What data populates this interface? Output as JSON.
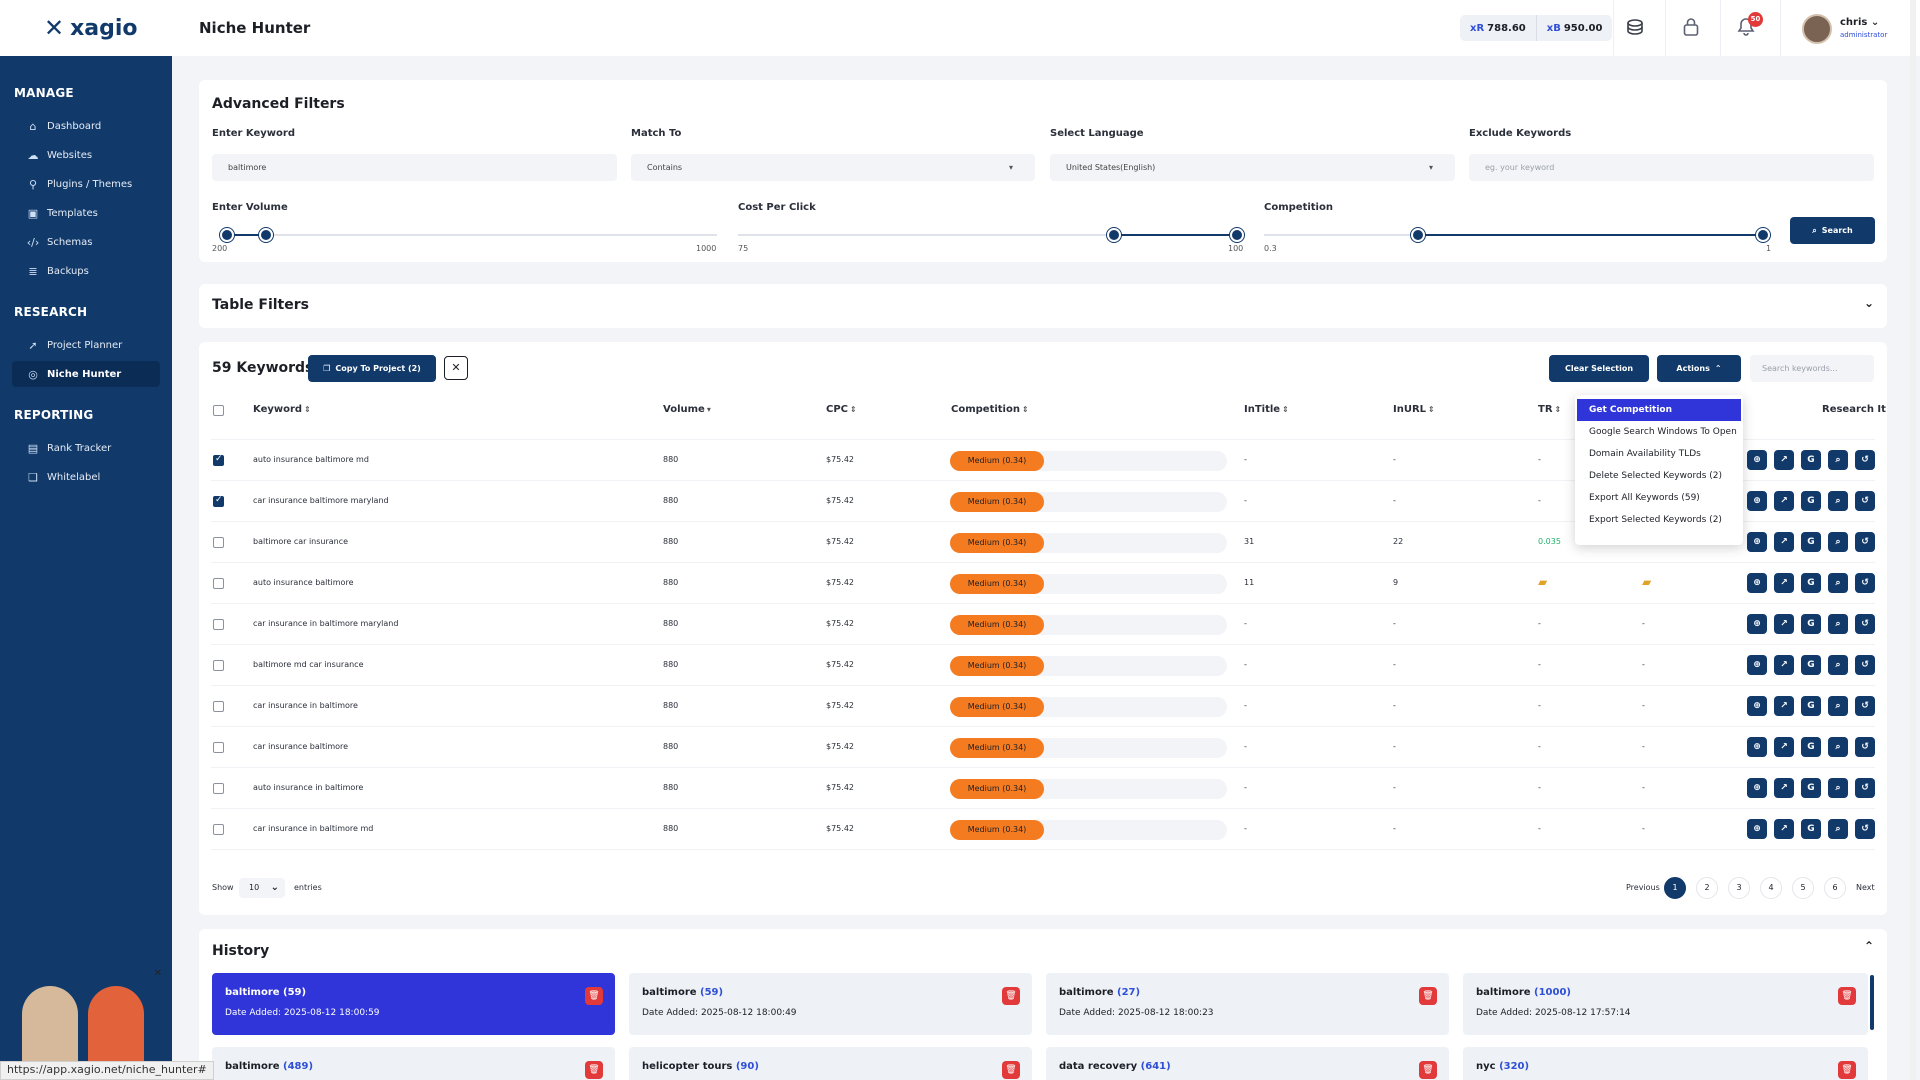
{
  "app": {
    "logo_text": "xagio",
    "page_title": "Niche Hunter"
  },
  "sidebar": {
    "sections": [
      {
        "title": "MANAGE",
        "items": [
          {
            "label": "Dashboard",
            "icon": "home-icon"
          },
          {
            "label": "Websites",
            "icon": "cloud-icon"
          },
          {
            "label": "Plugins / Themes",
            "icon": "plug-icon"
          },
          {
            "label": "Templates",
            "icon": "image-icon"
          },
          {
            "label": "Schemas",
            "icon": "code-icon"
          },
          {
            "label": "Backups",
            "icon": "database-icon"
          }
        ]
      },
      {
        "title": "RESEARCH",
        "items": [
          {
            "label": "Project Planner",
            "icon": "rocket-icon"
          },
          {
            "label": "Niche Hunter",
            "icon": "target-icon"
          }
        ]
      },
      {
        "title": "REPORTING",
        "items": [
          {
            "label": "Rank Tracker",
            "icon": "chart-icon"
          },
          {
            "label": "Whitelabel",
            "icon": "bookmark-icon"
          }
        ]
      }
    ]
  },
  "header": {
    "credit_r": "788.60",
    "credit_b": "950.00",
    "credit_r_prefix": "xR",
    "credit_b_prefix": "xB",
    "notifications": "50",
    "user_name": "chris",
    "user_role": "administrator"
  },
  "advanced_filters": {
    "title": "Advanced Filters",
    "keyword_label": "Enter Keyword",
    "keyword_value": "baltimore",
    "match_label": "Match To",
    "match_value": "Contains",
    "language_label": "Select Language",
    "language_value": "United States(English)",
    "exclude_label": "Exclude Keywords",
    "exclude_placeholder": "eg. your keyword",
    "volume_label": "Enter Volume",
    "volume_min": "200",
    "volume_max": "1000",
    "cpc_label": "Cost Per Click",
    "cpc_min": "75",
    "cpc_max": "100",
    "competition_label": "Competition",
    "competition_min": "0.3",
    "competition_max": "1",
    "search_label": "Search"
  },
  "table_filters": {
    "title": "Table Filters"
  },
  "keywords_table": {
    "count_label": "59 Keywords",
    "copy_label": "Copy To Project (2)",
    "clear_label": "Clear Selection",
    "actions_label": "Actions",
    "search_placeholder": "Search keywords...",
    "columns": [
      "Keyword",
      "Volume",
      "CPC",
      "Competition",
      "InTitle",
      "InURL",
      "TR",
      "Research It"
    ],
    "rows": [
      {
        "keyword": "auto insurance baltimore md",
        "volume": "880",
        "cpc": "$75.42",
        "competition": "Medium (0.34)",
        "intitle": "-",
        "inurl": "-",
        "tr": "-",
        "ur": "",
        "checked": true
      },
      {
        "keyword": "car insurance baltimore maryland",
        "volume": "880",
        "cpc": "$75.42",
        "competition": "Medium (0.34)",
        "intitle": "-",
        "inurl": "-",
        "tr": "-",
        "ur": "",
        "checked": true
      },
      {
        "keyword": "baltimore car insurance",
        "volume": "880",
        "cpc": "$75.42",
        "competition": "Medium (0.34)",
        "intitle": "31",
        "inurl": "22",
        "tr": "0.035",
        "ur": "",
        "checked": false
      },
      {
        "keyword": "auto insurance baltimore",
        "volume": "880",
        "cpc": "$75.42",
        "competition": "Medium (0.34)",
        "intitle": "11",
        "inurl": "9",
        "tr": "",
        "ur": "",
        "checked": false,
        "gold": true
      },
      {
        "keyword": "car insurance in baltimore maryland",
        "volume": "880",
        "cpc": "$75.42",
        "competition": "Medium (0.34)",
        "intitle": "-",
        "inurl": "-",
        "tr": "-",
        "ur": "-",
        "checked": false
      },
      {
        "keyword": "baltimore md car insurance",
        "volume": "880",
        "cpc": "$75.42",
        "competition": "Medium (0.34)",
        "intitle": "-",
        "inurl": "-",
        "tr": "-",
        "ur": "-",
        "checked": false
      },
      {
        "keyword": "car insurance in baltimore",
        "volume": "880",
        "cpc": "$75.42",
        "competition": "Medium (0.34)",
        "intitle": "-",
        "inurl": "-",
        "tr": "-",
        "ur": "-",
        "checked": false
      },
      {
        "keyword": "car insurance baltimore",
        "volume": "880",
        "cpc": "$75.42",
        "competition": "Medium (0.34)",
        "intitle": "-",
        "inurl": "-",
        "tr": "-",
        "ur": "-",
        "checked": false
      },
      {
        "keyword": "auto insurance in baltimore",
        "volume": "880",
        "cpc": "$75.42",
        "competition": "Medium (0.34)",
        "intitle": "-",
        "inurl": "-",
        "tr": "-",
        "ur": "-",
        "checked": false
      },
      {
        "keyword": "car insurance in baltimore md",
        "volume": "880",
        "cpc": "$75.42",
        "competition": "Medium (0.34)",
        "intitle": "-",
        "inurl": "-",
        "tr": "-",
        "ur": "-",
        "checked": false
      }
    ],
    "actions_menu": [
      "Get Competition",
      "Google Search Windows To Open",
      "Domain Availability TLDs",
      "Delete Selected Keywords (2)",
      "Export All Keywords (59)",
      "Export Selected Keywords (2)"
    ],
    "show_label": "Show",
    "entries_value": "10",
    "entries_label": "entries",
    "pagination": {
      "previous": "Previous",
      "next": "Next",
      "pages": [
        "1",
        "2",
        "3",
        "4",
        "5",
        "6"
      ],
      "current": "1"
    }
  },
  "history": {
    "title": "History",
    "items": [
      {
        "name": "baltimore",
        "count": "(59)",
        "date": "Date Added: 2025-08-12 18:00:59",
        "active": true
      },
      {
        "name": "baltimore",
        "count": "(59)",
        "date": "Date Added: 2025-08-12 18:00:49",
        "active": false
      },
      {
        "name": "baltimore",
        "count": "(27)",
        "date": "Date Added: 2025-08-12 18:00:23",
        "active": false
      },
      {
        "name": "baltimore",
        "count": "(1000)",
        "date": "Date Added: 2025-08-12 17:57:14",
        "active": false
      },
      {
        "name": "baltimore",
        "count": "(489)",
        "date": "",
        "active": false
      },
      {
        "name": "helicopter tours",
        "count": "(90)",
        "date": "",
        "active": false
      },
      {
        "name": "data recovery",
        "count": "(641)",
        "date": "",
        "active": false
      },
      {
        "name": "nyc",
        "count": "(320)",
        "date": "",
        "active": false
      }
    ]
  },
  "status_url": "https://app.xagio.net/niche_hunter#",
  "colors": {
    "primary": "#113a6b",
    "accent": "#2f35d8",
    "orange": "#f47b20",
    "danger": "#e23a3a"
  }
}
